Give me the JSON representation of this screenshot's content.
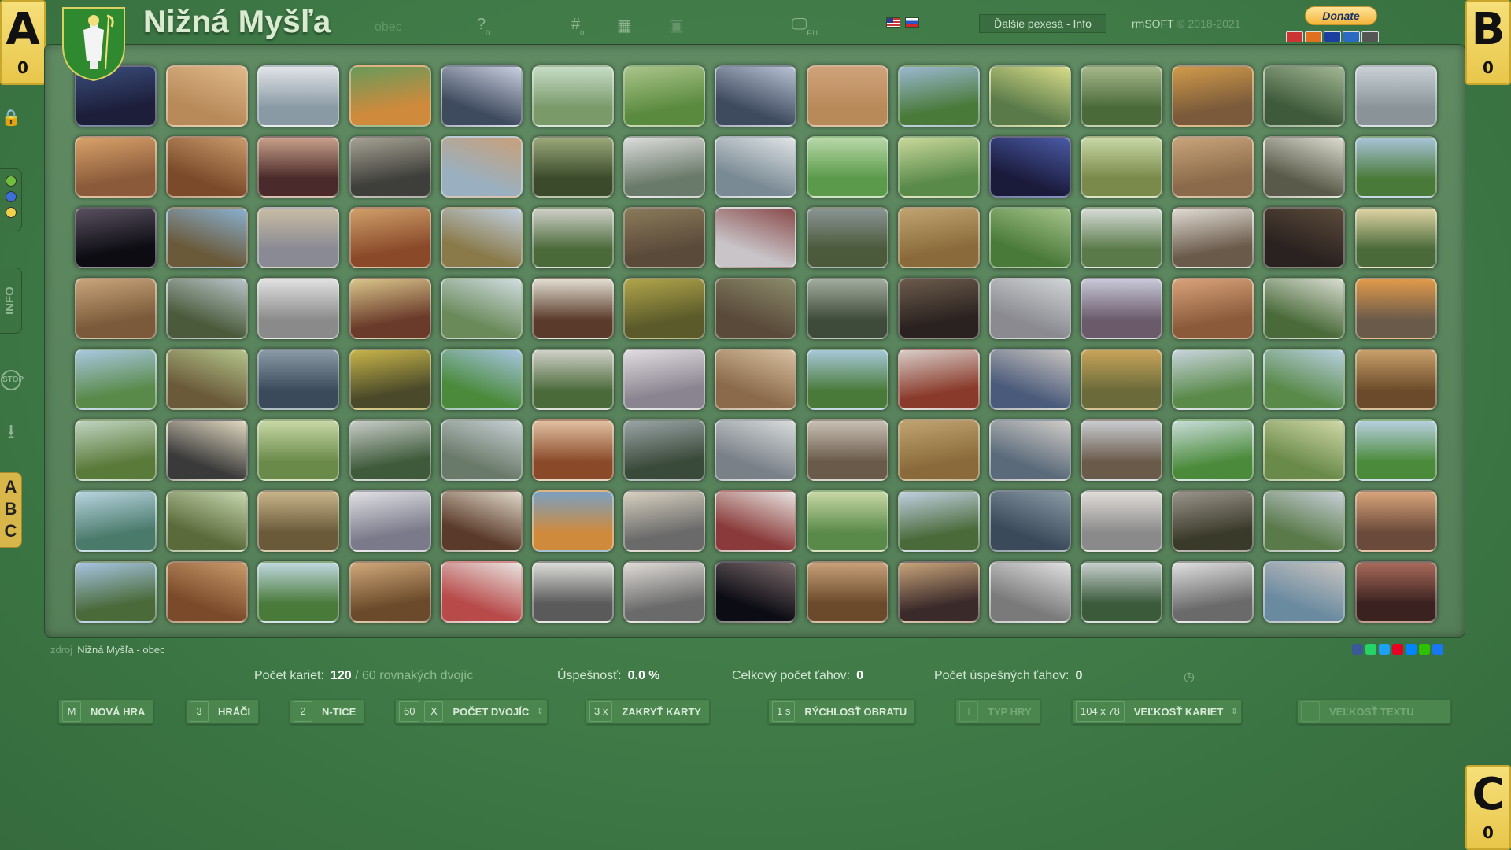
{
  "players": [
    {
      "letter": "A",
      "score": "0"
    },
    {
      "letter": "B",
      "score": "0"
    },
    {
      "letter": "C",
      "score": "0"
    }
  ],
  "header": {
    "title": "Nižná Myšľa",
    "subtitle": "obec",
    "help_badge": "0",
    "hash_badge": "0",
    "monitor_label": "F11",
    "info_button": "Ďalšie pexesá - Info",
    "copyright_name": "rmSOFT",
    "copyright_years": "© 2018-2021",
    "donate_label": "Donate"
  },
  "sidebar": {
    "info_label": "INFO",
    "stop_label": "STOP",
    "abc_letters": [
      "A",
      "B",
      "C"
    ],
    "dot_colors": [
      "#6fbf3c",
      "#3d6fd8",
      "#f0d24a"
    ]
  },
  "board": {
    "rows": 8,
    "cols": 15,
    "card_palettes": [
      [
        "#1c1e3a",
        "#3a4d7a"
      ],
      [
        "#b88a5a",
        "#e0b889"
      ],
      [
        "#8a9aa4",
        "#e0e4e8"
      ],
      [
        "#d08a3c",
        "#6a9a5a"
      ],
      [
        "#3e4a5e",
        "#c9cfdf"
      ],
      [
        "#7a9a6a",
        "#c6dcc6"
      ],
      [
        "#5a8a3e",
        "#aac48a"
      ],
      [
        "#3e4a5e",
        "#b8c2d4"
      ],
      [
        "#b88a5a",
        "#d0a27a"
      ],
      [
        "#4a7a3a",
        "#9ab8d0"
      ],
      [
        "#5a7a4a",
        "#d8dc88"
      ],
      [
        "#4a6a3a",
        "#a6b88a"
      ],
      [
        "#7a5a3a",
        "#d09a4a"
      ],
      [
        "#3e5a3a",
        "#a2b694"
      ],
      [
        "#8a9498",
        "#c8d0d6"
      ],
      [
        "#8a5a3a",
        "#d8a26a"
      ],
      [
        "#7a4a2a",
        "#c89a6a"
      ],
      [
        "#4a2a2a",
        "#c8a08a"
      ],
      [
        "#3e3e3a",
        "#a6a294"
      ],
      [
        "#9ab0c0",
        "#c8a07a"
      ],
      [
        "#3a4a2a",
        "#9aa87a"
      ],
      [
        "#6a7a6a",
        "#dcdcdc"
      ],
      [
        "#7a8a94",
        "#e0e4e6"
      ],
      [
        "#5a9a4a",
        "#b8d8a8"
      ],
      [
        "#5a8a4a",
        "#c8d89a"
      ],
      [
        "#1a1a3a",
        "#4a5aa6"
      ],
      [
        "#7a8a4a",
        "#c8d8a6"
      ],
      [
        "#8a6a4a",
        "#c8a47a"
      ],
      [
        "#5a5a4a",
        "#dcdcd0"
      ],
      [
        "#4a7a3a",
        "#a8c4d8"
      ],
      [
        "#0c0c12",
        "#5a5060"
      ],
      [
        "#6a5a3a",
        "#8ab0d0"
      ],
      [
        "#8a8a94",
        "#c8bca4"
      ],
      [
        "#8a4a2a",
        "#d0a06a"
      ],
      [
        "#8a7a4a",
        "#c0d0e0"
      ],
      [
        "#4a6a3a",
        "#d0d0c8"
      ],
      [
        "#5a4a3a",
        "#8a7a5a"
      ],
      [
        "#c8c4c8",
        "#8a4a4a"
      ],
      [
        "#4a5a3a",
        "#8a9494"
      ],
      [
        "#8a6a3a",
        "#c0a470"
      ],
      [
        "#4a7a3a",
        "#a6c48a"
      ],
      [
        "#5a7a4a",
        "#d8dcd8"
      ],
      [
        "#6a5a4a",
        "#e0dcd4"
      ],
      [
        "#2a2220",
        "#5a4a3a"
      ],
      [
        "#4a6a3a",
        "#e0d4a4"
      ],
      [
        "#7a5a3a",
        "#c8a47a"
      ],
      [
        "#4a5a3a",
        "#b8c4c8"
      ],
      [
        "#8a8a8a",
        "#e0e0e0"
      ],
      [
        "#6a3a2a",
        "#d8c48a"
      ],
      [
        "#6a8a5a",
        "#d0dce0"
      ],
      [
        "#5a3a2a",
        "#e0dcd0"
      ],
      [
        "#5a5a2a",
        "#b0a44a"
      ],
      [
        "#5a4a3a",
        "#8a8a6a"
      ],
      [
        "#3e4a3a",
        "#a2ac9e"
      ],
      [
        "#2a2220",
        "#6a5a4a"
      ],
      [
        "#8a8a90",
        "#d0d4d6"
      ],
      [
        "#6a5a6a",
        "#c8c8d8"
      ],
      [
        "#8a5a3a",
        "#d8a27a"
      ],
      [
        "#4a6a3a",
        "#d8dcd0"
      ],
      [
        "#6a5a4a",
        "#e09a4a"
      ],
      [
        "#5a8a4a",
        "#a8c8e0"
      ],
      [
        "#6a5a3a",
        "#b4c48a"
      ],
      [
        "#3a4a5a",
        "#8a9aa6"
      ],
      [
        "#4a4a2a",
        "#c8b44a"
      ],
      [
        "#4a8a3a",
        "#a6c4e0"
      ],
      [
        "#4a6a3a",
        "#d0d0c8"
      ],
      [
        "#8a8490",
        "#e0dce0"
      ],
      [
        "#8a6a4a",
        "#d8c0a0"
      ],
      [
        "#4a7a3a",
        "#a6c8d8"
      ],
      [
        "#8a3a2a",
        "#d8ccc8"
      ],
      [
        "#4a5a7a",
        "#c8c4c0"
      ],
      [
        "#6a6a3a",
        "#c8a45a"
      ],
      [
        "#5a8a4a",
        "#c8d4dc"
      ],
      [
        "#5a8a4a",
        "#b8d0e0"
      ],
      [
        "#6a4a2a",
        "#c8a06a"
      ],
      [
        "#5a7a3a",
        "#c0d4c0"
      ],
      [
        "#3a3a3a",
        "#e0d8c0"
      ],
      [
        "#6a8a4a",
        "#c8d8a6"
      ],
      [
        "#3e5a3a",
        "#c8ccc8"
      ],
      [
        "#6a7a6a",
        "#c8d0d4"
      ],
      [
        "#8a4a2a",
        "#e0c0a0"
      ],
      [
        "#3a4a3a",
        "#9aa4a6"
      ],
      [
        "#7a8088",
        "#d8dcdc"
      ],
      [
        "#6a5a4a",
        "#c8c0b4"
      ],
      [
        "#8a6a3a",
        "#c0a470"
      ],
      [
        "#5a6a7a",
        "#d0ccc8"
      ],
      [
        "#6a5a4a",
        "#c8ccd0"
      ],
      [
        "#4a8a3a",
        "#c8dcd8"
      ],
      [
        "#6a8a4a",
        "#d0d8a6"
      ],
      [
        "#4a8a3a",
        "#b8d0e0"
      ],
      [
        "#4a7a6a",
        "#b8d4e0"
      ],
      [
        "#5a6a3a",
        "#c8d8b0"
      ],
      [
        "#6a5a3a",
        "#c8b48a"
      ],
      [
        "#7a7a8a",
        "#e0e0e4"
      ],
      [
        "#5a3a2a",
        "#e0d8c8"
      ],
      [
        "#d08a3c",
        "#7aa0c0"
      ],
      [
        "#6a6a6a",
        "#d8d0c0"
      ],
      [
        "#8a3a3a",
        "#e8e4e0"
      ],
      [
        "#5a8a4a",
        "#c8d8a6"
      ],
      [
        "#4a6a3a",
        "#c0d0e0"
      ],
      [
        "#3a4a5a",
        "#8a9aa6"
      ],
      [
        "#8a8a8a",
        "#e0dcd8"
      ],
      [
        "#3a3a2a",
        "#9a948a"
      ],
      [
        "#5a7a4a",
        "#c8d0d8"
      ],
      [
        "#6a4a3a",
        "#d8a47a"
      ],
      [
        "#4a6a3a",
        "#a6c4e0"
      ],
      [
        "#7a4a2a",
        "#c89a6a"
      ],
      [
        "#4a7a3a",
        "#c0d8e0"
      ],
      [
        "#6a4a2a",
        "#d0a87a"
      ],
      [
        "#b84a4a",
        "#e8e4e0"
      ],
      [
        "#5a5a5a",
        "#dcdcd8"
      ],
      [
        "#6a6a6a",
        "#e0dcd8"
      ],
      [
        "#0c0c14",
        "#7a6a6a"
      ],
      [
        "#6a4a2a",
        "#c8a07a"
      ],
      [
        "#3a2a2a",
        "#c8a47a"
      ],
      [
        "#7a7a7a",
        "#e0e0e0"
      ],
      [
        "#3a5a3a",
        "#c8d0d0"
      ],
      [
        "#6a6a6a",
        "#e0e0e0"
      ],
      [
        "#6a8aa0",
        "#c8c4c0"
      ],
      [
        "#3a2220",
        "#a86a5a"
      ]
    ]
  },
  "footer": {
    "source_label": "zdroj",
    "source_name": "Nižná Myšľa - obec",
    "share_colors": [
      "#3b5998",
      "#25d366",
      "#1da1f2",
      "#e60023",
      "#0084ff",
      "#2dc100",
      "#1877f2"
    ]
  },
  "stats": {
    "cards_label": "Počet kariet:",
    "cards_value": "120",
    "cards_pairs": "/ 60",
    "cards_suffix": "rovnakých dvojíc",
    "success_label": "Úspešnosť:",
    "success_value": "0.0 %",
    "moves_label": "Celkový počet ťahov:",
    "moves_value": "0",
    "good_moves_label": "Počet úspešných ťahov:",
    "good_moves_value": "0"
  },
  "controls": [
    {
      "value": "M",
      "label": "NOVÁ HRA"
    },
    {
      "value": "3",
      "label": "HRÁČI"
    },
    {
      "value": "2",
      "label": "N-TICE"
    },
    {
      "value": "60",
      "value2": "X",
      "label": "POČET DVOJÍC"
    },
    {
      "value": "3 x",
      "label": "ZAKRYŤ KARTY"
    },
    {
      "value": "1 s",
      "label": "RÝCHLOSŤ OBRATU"
    },
    {
      "value": "I",
      "label": "TYP HRY"
    },
    {
      "value": "104 x 78",
      "label": "VEĽKOSŤ KARIET"
    },
    {
      "value": "",
      "label": "VEĽKOSŤ TEXTU"
    }
  ]
}
